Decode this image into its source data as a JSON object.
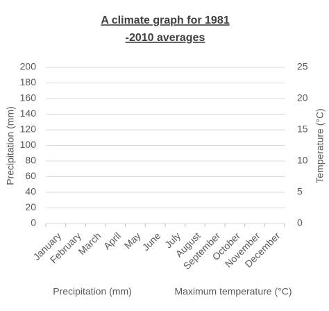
{
  "chart_data": {
    "type": "bar",
    "title": [
      "A climate graph for 1981",
      "-2010 averages"
    ],
    "categories": [
      "January",
      "February",
      "March",
      "April",
      "May",
      "June",
      "July",
      "August",
      "September",
      "October",
      "November",
      "December"
    ],
    "series": [
      {
        "name": "Precipitation (mm)",
        "values": [
          null,
          null,
          null,
          null,
          null,
          null,
          null,
          null,
          null,
          null,
          null,
          null
        ]
      },
      {
        "name": "Maximum temperature (°C)",
        "axis": "y2",
        "values": [
          null,
          null,
          null,
          null,
          null,
          null,
          null,
          null,
          null,
          null,
          null,
          null
        ]
      }
    ],
    "y_label": "Precipitation (mm)",
    "y2_label": "Temperature (°C)",
    "ylim": [
      0,
      200
    ],
    "yticks": [
      0,
      20,
      40,
      60,
      80,
      100,
      120,
      140,
      160,
      180,
      200
    ],
    "y2lim": [
      0,
      25
    ],
    "y2ticks": [
      0,
      5,
      10,
      15,
      20,
      25
    ],
    "grid": true,
    "legend": "bottom"
  }
}
